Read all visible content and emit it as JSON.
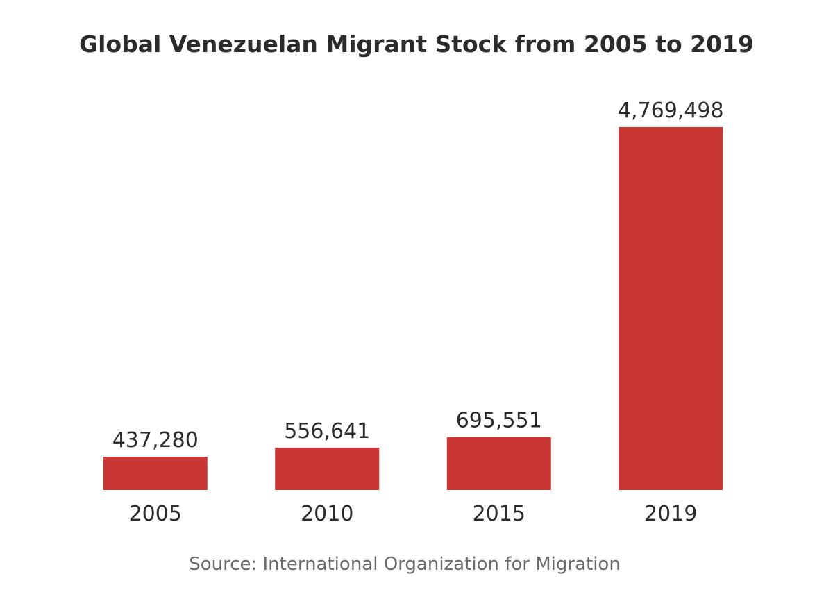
{
  "chart_data": {
    "type": "bar",
    "title": "Global Venezuelan Migrant Stock from 2005 to 2019",
    "categories": [
      "2005",
      "2010",
      "2015",
      "2019"
    ],
    "values": [
      437280,
      556641,
      695551,
      4769498
    ],
    "value_labels": [
      "437,280",
      "556,641",
      "695,551",
      "4,769,498"
    ],
    "xlabel": "",
    "ylabel": "",
    "ylim": [
      0,
      4769498
    ],
    "grid": false,
    "legend": "none",
    "bar_color": "#c93735"
  },
  "source": "Source: International Organization for Migration"
}
